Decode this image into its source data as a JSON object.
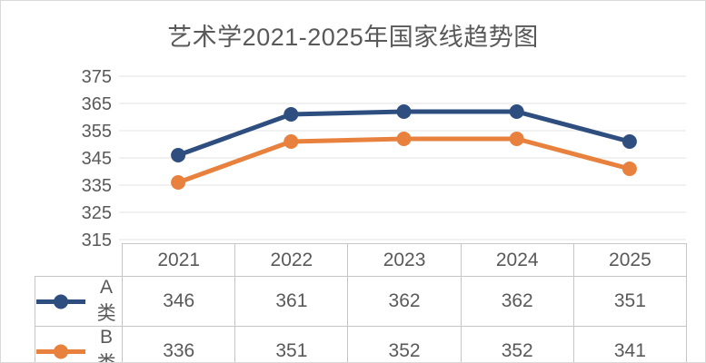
{
  "chart_data": {
    "type": "line",
    "title": "艺术学2021-2025年国家线趋势图",
    "categories": [
      "2021",
      "2022",
      "2023",
      "2024",
      "2025"
    ],
    "series": [
      {
        "name": "A类",
        "values": [
          346,
          361,
          362,
          362,
          351
        ],
        "color": "#2F4E80",
        "marker": "circle"
      },
      {
        "name": "B类",
        "values": [
          336,
          351,
          352,
          352,
          341
        ],
        "color": "#E8813D",
        "marker": "circle"
      }
    ],
    "xlabel": "",
    "ylabel": "",
    "ylim": [
      315,
      375
    ],
    "yticks": [
      315,
      325,
      335,
      345,
      355,
      365,
      375
    ],
    "grid": true,
    "gridline_color": "#e3e3e3",
    "axis_label_color": "#595959",
    "title_color": "#595959",
    "legend_position": "data-table-left",
    "data_table_shown": true
  }
}
